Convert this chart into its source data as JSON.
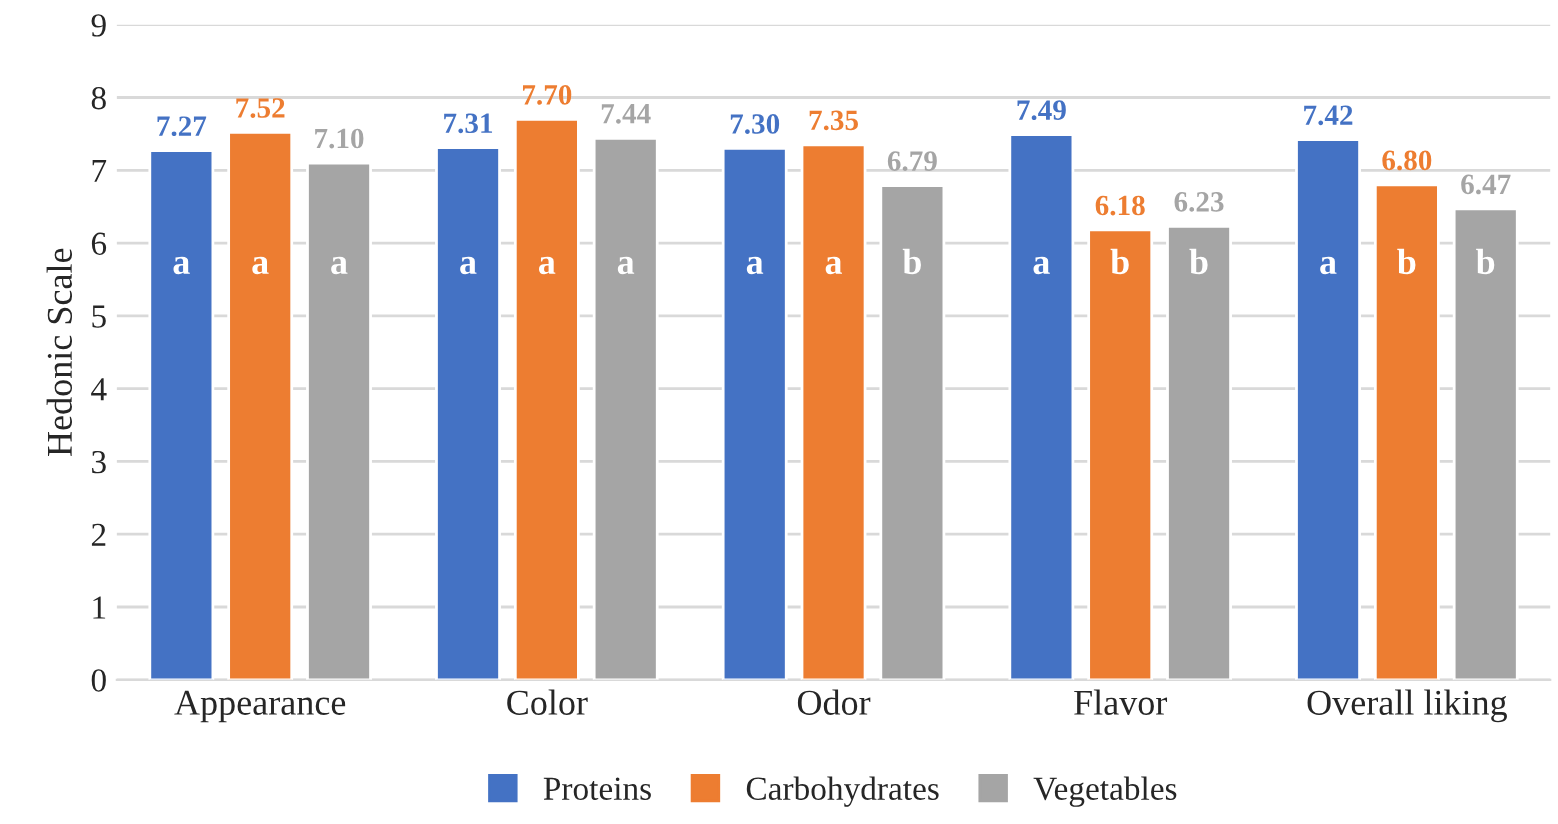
{
  "chart_data": {
    "type": "bar",
    "ylabel": "Hedonic Scale",
    "categories": [
      "Appearance",
      "Color",
      "Odor",
      "Flavor",
      "Overall liking"
    ],
    "series": [
      {
        "name": "Proteins",
        "color": "#4472c4",
        "values": [
          7.27,
          7.31,
          7.3,
          7.49,
          7.42
        ],
        "value_labels": [
          "7.27",
          "7.31",
          "7.30",
          "7.49",
          "7.42"
        ]
      },
      {
        "name": "Carbohydrates",
        "color": "#ed7d31",
        "values": [
          7.52,
          7.7,
          7.35,
          6.18,
          6.8
        ],
        "value_labels": [
          "7.52",
          "7.70",
          "7.35",
          "6.18",
          "6.80"
        ]
      },
      {
        "name": "Vegetables",
        "color": "#a5a5a5",
        "values": [
          7.1,
          7.44,
          6.79,
          6.23,
          6.47
        ],
        "value_labels": [
          "7.10",
          "7.44",
          "6.79",
          "6.23",
          "6.47"
        ]
      }
    ],
    "annotations": [
      "a",
      "a",
      "a",
      "a",
      "a",
      "a",
      "a",
      "a",
      "b",
      "a",
      "b",
      "b",
      "a",
      "b",
      "b"
    ],
    "ylim": [
      0,
      9
    ],
    "yticks": [
      0,
      1,
      2,
      3,
      4,
      5,
      6,
      7,
      8,
      9
    ],
    "grid": "y",
    "legend": "bottom"
  }
}
